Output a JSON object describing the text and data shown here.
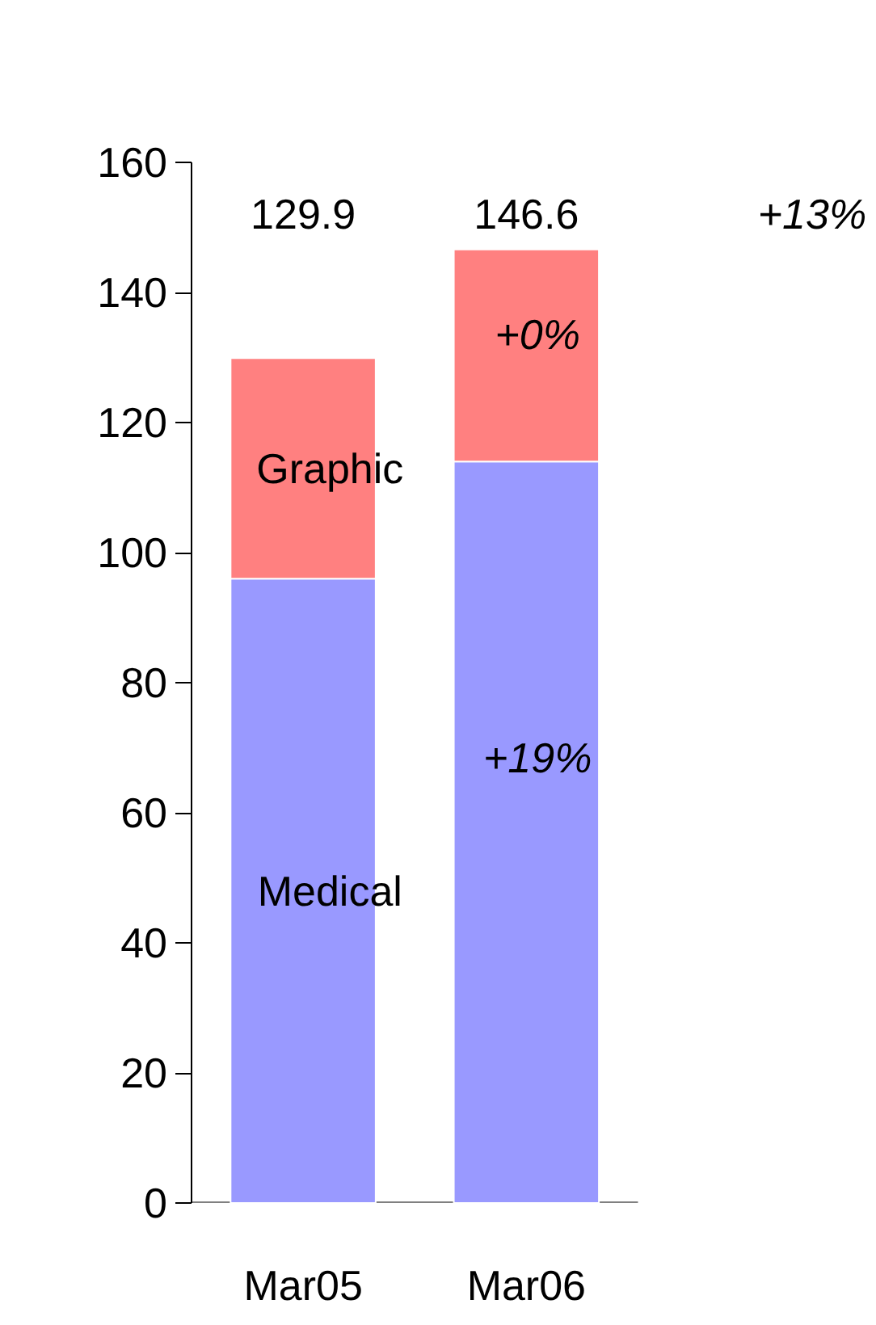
{
  "chart_data": {
    "type": "bar",
    "stacked": true,
    "categories": [
      "Mar05",
      "Mar06"
    ],
    "series": [
      {
        "name": "Medical",
        "color": "#9999ff",
        "values": [
          96.0,
          114.0
        ]
      },
      {
        "name": "Graphic",
        "color": "#ff8080",
        "values": [
          33.9,
          32.6
        ]
      }
    ],
    "totals": [
      "129.9",
      "146.6"
    ],
    "annotations": [
      "+13%",
      "+0%",
      "+19%"
    ],
    "ylim": [
      0,
      160
    ],
    "yticks": [
      0,
      20,
      40,
      60,
      80,
      100,
      120,
      140,
      160
    ]
  }
}
